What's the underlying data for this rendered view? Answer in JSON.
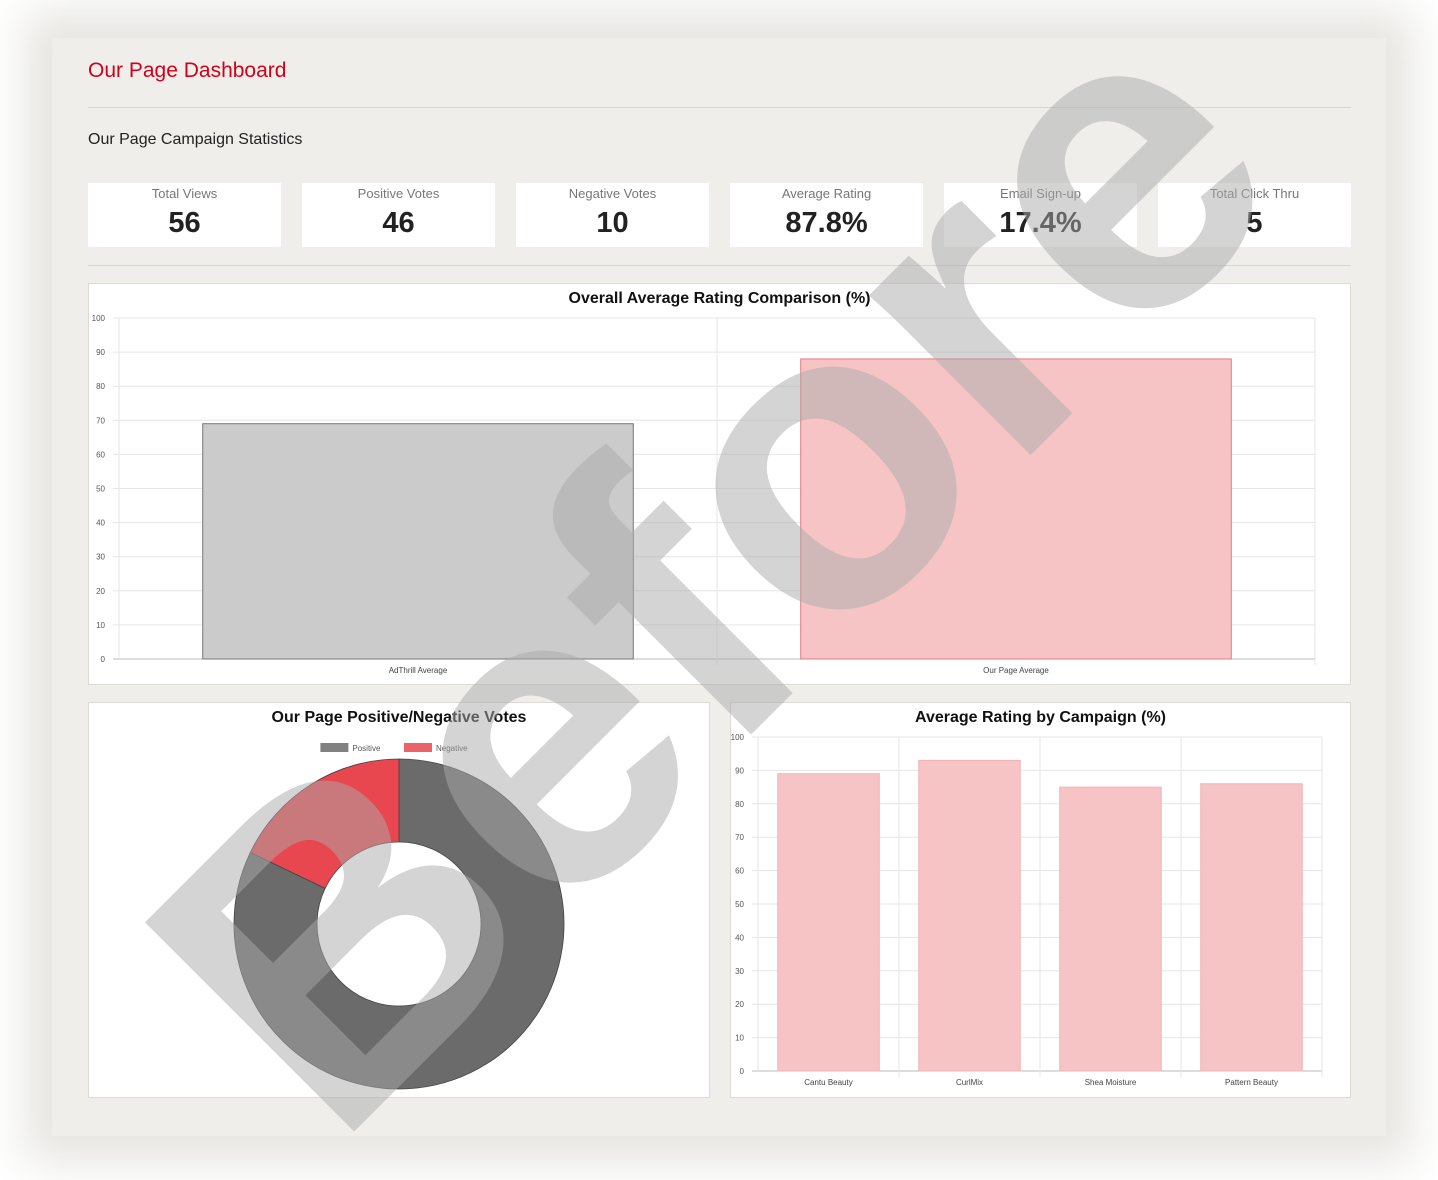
{
  "header": {
    "title": "Our Page Dashboard"
  },
  "section": {
    "title": "Our Page Campaign Statistics"
  },
  "stats": [
    {
      "label": "Total Views",
      "value": "56"
    },
    {
      "label": "Positive Votes",
      "value": "46"
    },
    {
      "label": "Negative Votes",
      "value": "10"
    },
    {
      "label": "Average Rating",
      "value": "87.8%"
    },
    {
      "label": "Email Sign-up",
      "value": "17.4%"
    },
    {
      "label": "Total Click Thru",
      "value": "5"
    }
  ],
  "watermark": "Before",
  "colors": {
    "accent": "#d0021b",
    "positive": "#6b6b6b",
    "negative": "#e8474f",
    "bar_gray": "#cbcbcb",
    "bar_pink": "#f7c4c6"
  },
  "chart_data": [
    {
      "type": "bar",
      "title": "Overall Average Rating Comparison (%)",
      "categories": [
        "AdThrill Average",
        "Our Page Average"
      ],
      "values": [
        69,
        88
      ],
      "ylim": [
        0,
        100
      ],
      "yticks": [
        0,
        10,
        20,
        30,
        40,
        50,
        60,
        70,
        80,
        90,
        100
      ],
      "grid": true
    },
    {
      "type": "pie",
      "title": "Our Page Positive/Negative Votes",
      "labels": [
        "Positive",
        "Negative"
      ],
      "values": [
        46,
        10
      ],
      "legend": "top"
    },
    {
      "type": "bar",
      "title": "Average Rating by Campaign (%)",
      "categories": [
        "Cantu Beauty",
        "CurlMix",
        "Shea Moisture",
        "Pattern Beauty"
      ],
      "values": [
        89,
        93,
        85,
        86
      ],
      "ylim": [
        0,
        100
      ],
      "yticks": [
        0,
        10,
        20,
        30,
        40,
        50,
        60,
        70,
        80,
        90,
        100
      ],
      "grid": true
    }
  ]
}
